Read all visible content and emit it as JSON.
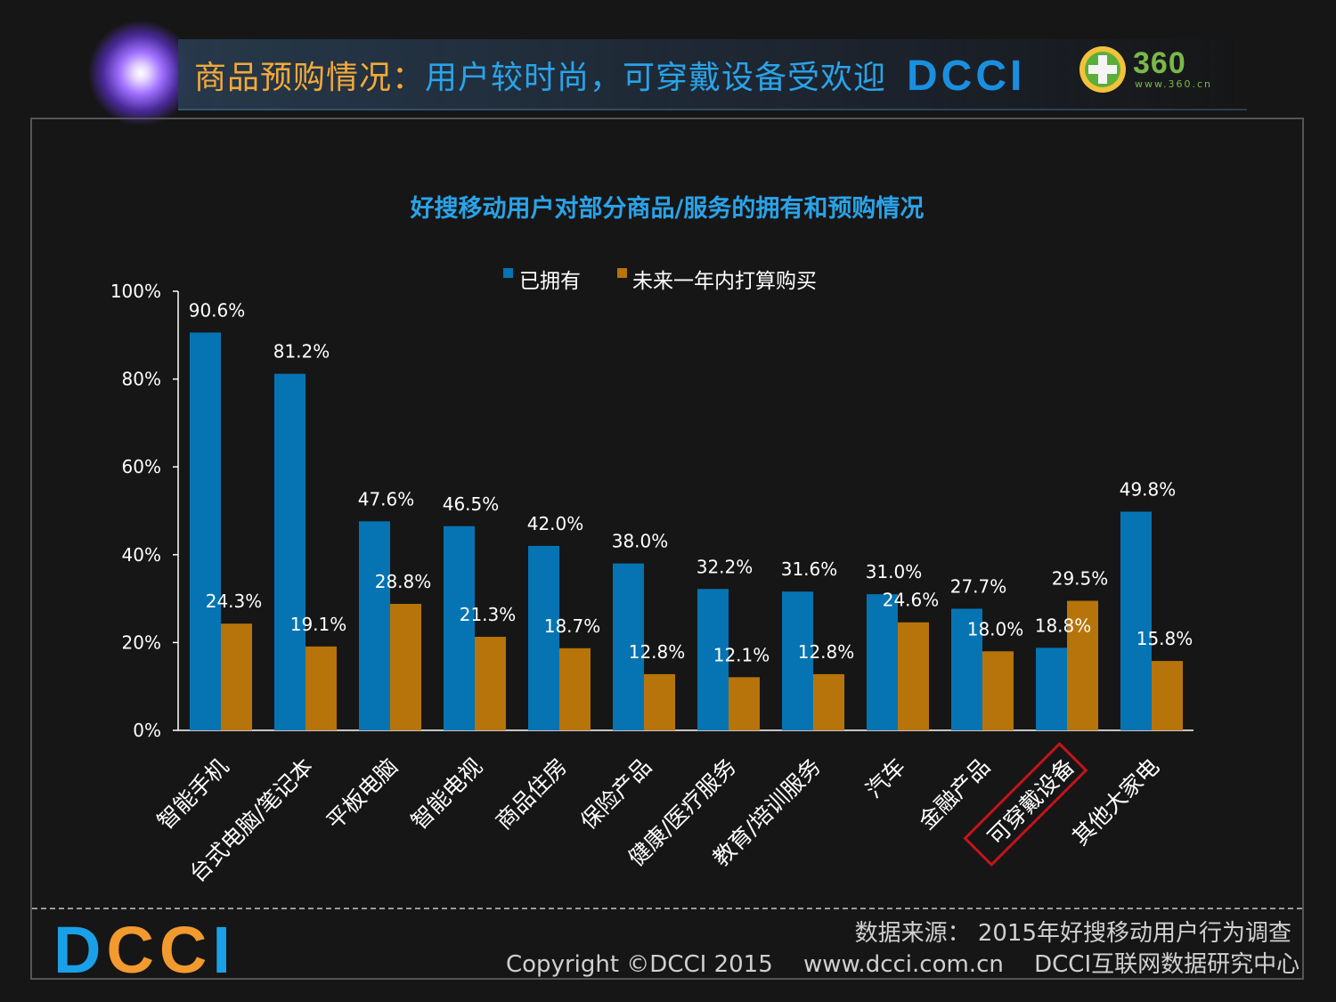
{
  "header": {
    "title_part1": "商品预购情况：",
    "title_part2": "用户较时尚，可穿戴设备受欢迎",
    "brand": "DCCI",
    "logo_360": "360",
    "logo_360_url": "www.360.cn"
  },
  "footer": {
    "brand": "DCCI",
    "source": "数据来源： 2015年好搜移动用户行为调查",
    "copyright": "Copyright ©DCCI 2015",
    "website": "www.dcci.com.cn",
    "org": "DCCI互联网数据研究中心"
  },
  "colors": {
    "series1": "#0674b3",
    "series2": "#b7740a",
    "title": "#2aa3e8",
    "highlight_box": "#c4141a"
  },
  "chart_data": {
    "type": "bar",
    "title": "好搜移动用户对部分商品/服务的拥有和预购情况",
    "categories": [
      "智能手机",
      "台式电脑/笔记本",
      "平板电脑",
      "智能电视",
      "商品住房",
      "保险产品",
      "健康/医疗服务",
      "教育/培训服务",
      "汽车",
      "金融产品",
      "可穿戴设备",
      "其他大家电"
    ],
    "series": [
      {
        "name": "已拥有",
        "values": [
          90.6,
          81.2,
          47.6,
          46.5,
          42.0,
          38.0,
          32.2,
          31.6,
          31.0,
          27.7,
          18.8,
          49.8
        ]
      },
      {
        "name": "未来一年内打算购买",
        "values": [
          24.3,
          19.1,
          28.8,
          21.3,
          18.7,
          12.8,
          12.1,
          12.8,
          24.6,
          18.0,
          29.5,
          15.8
        ]
      }
    ],
    "data_labels": [
      [
        "90.6%",
        "81.2%",
        "47.6%",
        "46.5%",
        "42.0%",
        "38.0%",
        "32.2%",
        "31.6%",
        "31.0%",
        "27.7%",
        "18.8%",
        "49.8%"
      ],
      [
        "24.3%",
        "19.1%",
        "28.8%",
        "21.3%",
        "18.7%",
        "12.8%",
        "12.1%",
        "12.8%",
        "24.6%",
        "18.0%",
        "29.5%",
        "15.8%"
      ]
    ],
    "y_ticks": [
      "0%",
      "20%",
      "40%",
      "60%",
      "80%",
      "100%"
    ],
    "ylim": [
      0,
      100
    ],
    "legend_position": "top-center",
    "highlighted_category": "可穿戴设备",
    "grid": false
  }
}
